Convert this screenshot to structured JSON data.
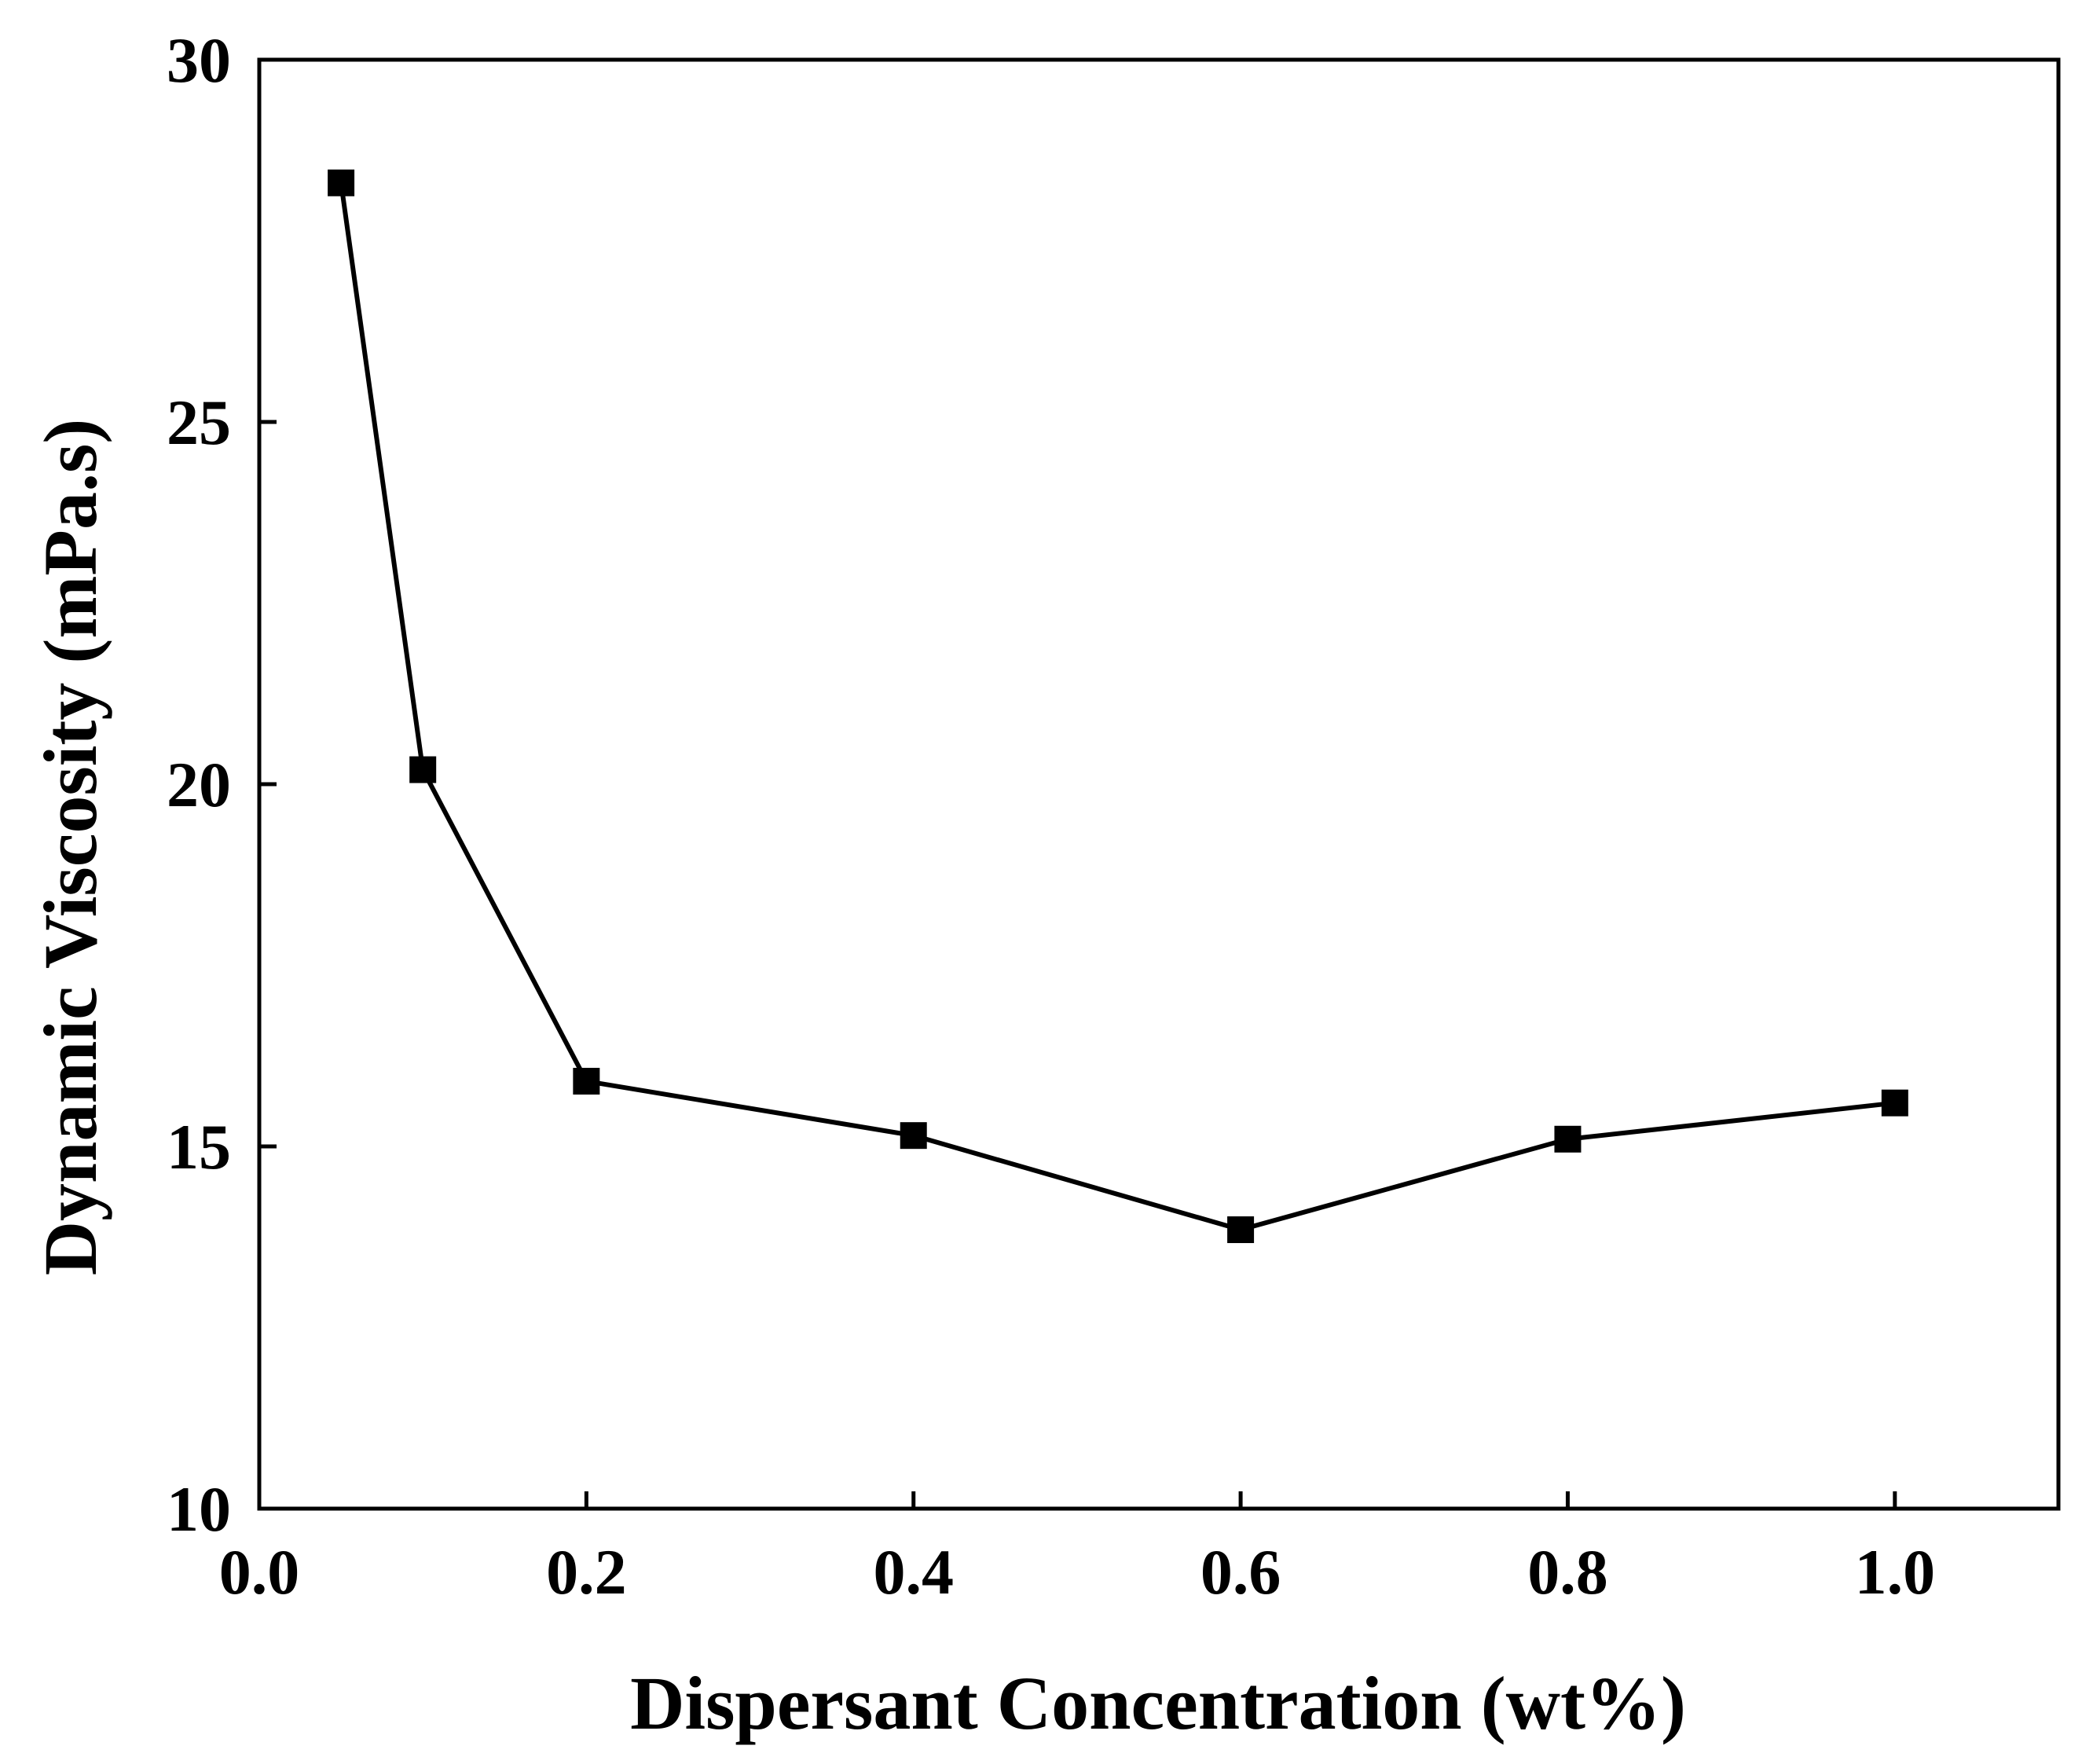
{
  "chart_data": {
    "type": "line",
    "title": "",
    "xlabel": "Dispersant Concentration (wt%)",
    "ylabel": "Dynamic Viscosity (mPa.s)",
    "xlim": [
      0.0,
      1.1
    ],
    "ylim": [
      10,
      30
    ],
    "x_ticks": [
      0.0,
      0.2,
      0.4,
      0.6,
      0.8,
      1.0
    ],
    "x_tick_labels": [
      "0.0",
      "0.2",
      "0.4",
      "0.6",
      "0.8",
      "1.0"
    ],
    "y_ticks": [
      10,
      15,
      20,
      25,
      30
    ],
    "y_tick_labels": [
      "10",
      "15",
      "20",
      "25",
      "30"
    ],
    "grid": false,
    "legend": "none",
    "series": [
      {
        "name": "Dynamic Viscosity",
        "marker": "filled-square",
        "color": "#000000",
        "x": [
          0.05,
          0.1,
          0.2,
          0.4,
          0.6,
          0.8,
          1.0
        ],
        "y": [
          28.3,
          20.2,
          15.9,
          15.15,
          13.85,
          15.1,
          15.6
        ]
      }
    ]
  }
}
